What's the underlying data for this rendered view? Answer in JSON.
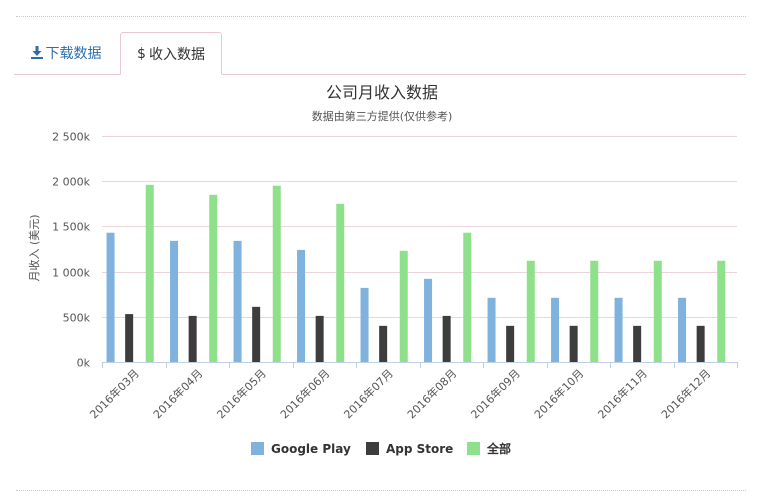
{
  "tabs": {
    "download_label": "下载数据",
    "income_label": "收入数据",
    "income_symbol": "$",
    "download_icon": "download-icon"
  },
  "colors": {
    "google_play": "#7fb3de",
    "app_store": "#3d3d3d",
    "total": "#8fe08a",
    "accent": "#2f6dab",
    "tab_border": "#e8c9d0"
  },
  "chart_data": {
    "type": "bar",
    "title": "公司月收入数据",
    "subtitle": "数据由第三方提供(仅供参考)",
    "xlabel": "",
    "ylabel": "月收入 (美元)",
    "ylim": [
      0,
      2500000
    ],
    "yticks": [
      0,
      500000,
      1000000,
      1500000,
      2000000,
      2500000
    ],
    "ytick_labels": [
      "0k",
      "500k",
      "1 000k",
      "1 500k",
      "2 000k",
      "2 500k"
    ],
    "grid": true,
    "legend_position": "bottom-center",
    "categories": [
      "2016年03月",
      "2016年04月",
      "2016年05月",
      "2016年06月",
      "2016年07月",
      "2016年08月",
      "2016年09月",
      "2016年10月",
      "2016年11月",
      "2016年12月"
    ],
    "series": [
      {
        "name": "Google Play",
        "color": "#7fb3de",
        "values": [
          1430000,
          1340000,
          1340000,
          1240000,
          820000,
          920000,
          710000,
          710000,
          710000,
          710000
        ]
      },
      {
        "name": "App Store",
        "color": "#3d3d3d",
        "values": [
          530000,
          510000,
          610000,
          510000,
          400000,
          510000,
          400000,
          400000,
          400000,
          400000
        ]
      },
      {
        "name": "全部",
        "color": "#8fe08a",
        "values": [
          1960000,
          1850000,
          1950000,
          1750000,
          1230000,
          1430000,
          1120000,
          1120000,
          1120000,
          1120000
        ]
      }
    ]
  }
}
